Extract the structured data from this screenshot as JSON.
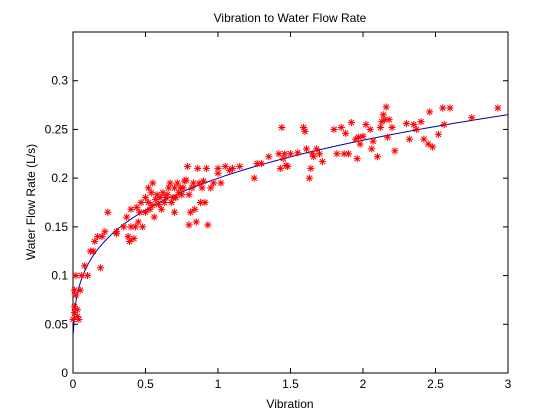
{
  "chart_data": {
    "type": "scatter",
    "title": "Vibration to Water Flow Rate",
    "xlabel": "Vibration",
    "ylabel": "Water Flow Rate (L/s)",
    "xlim": [
      0,
      3
    ],
    "ylim": [
      0,
      0.35
    ],
    "xticks": [
      "0",
      "0.5",
      "1",
      "1.5",
      "2",
      "2.5",
      "3"
    ],
    "yticks": [
      "0",
      "0.05",
      "0.1",
      "0.15",
      "0.2",
      "0.25",
      "0.3"
    ],
    "grid": false,
    "marker_color": "#ff0000",
    "fit_color": "#0000aa",
    "points": [
      [
        0.0,
        0.055
      ],
      [
        0.01,
        0.062
      ],
      [
        0.01,
        0.068
      ],
      [
        0.01,
        0.085
      ],
      [
        0.02,
        0.08
      ],
      [
        0.02,
        0.1
      ],
      [
        0.03,
        0.058
      ],
      [
        0.03,
        0.065
      ],
      [
        0.04,
        0.055
      ],
      [
        0.05,
        0.085
      ],
      [
        0.06,
        0.1
      ],
      [
        0.08,
        0.11
      ],
      [
        0.1,
        0.1
      ],
      [
        0.12,
        0.125
      ],
      [
        0.14,
        0.125
      ],
      [
        0.15,
        0.135
      ],
      [
        0.17,
        0.14
      ],
      [
        0.19,
        0.108
      ],
      [
        0.2,
        0.14
      ],
      [
        0.22,
        0.145
      ],
      [
        0.24,
        0.165
      ],
      [
        0.3,
        0.145
      ],
      [
        0.3,
        0.143
      ],
      [
        0.35,
        0.15
      ],
      [
        0.37,
        0.16
      ],
      [
        0.38,
        0.14
      ],
      [
        0.39,
        0.135
      ],
      [
        0.4,
        0.15
      ],
      [
        0.4,
        0.168
      ],
      [
        0.42,
        0.138
      ],
      [
        0.43,
        0.15
      ],
      [
        0.44,
        0.17
      ],
      [
        0.45,
        0.155
      ],
      [
        0.46,
        0.165
      ],
      [
        0.47,
        0.175
      ],
      [
        0.48,
        0.15
      ],
      [
        0.5,
        0.18
      ],
      [
        0.5,
        0.165
      ],
      [
        0.52,
        0.19
      ],
      [
        0.52,
        0.175
      ],
      [
        0.53,
        0.168
      ],
      [
        0.54,
        0.185
      ],
      [
        0.55,
        0.195
      ],
      [
        0.55,
        0.172
      ],
      [
        0.56,
        0.16
      ],
      [
        0.57,
        0.178
      ],
      [
        0.58,
        0.183
      ],
      [
        0.59,
        0.173
      ],
      [
        0.6,
        0.18
      ],
      [
        0.61,
        0.168
      ],
      [
        0.62,
        0.185
      ],
      [
        0.63,
        0.175
      ],
      [
        0.64,
        0.18
      ],
      [
        0.65,
        0.183
      ],
      [
        0.66,
        0.19
      ],
      [
        0.67,
        0.195
      ],
      [
        0.68,
        0.175
      ],
      [
        0.69,
        0.18
      ],
      [
        0.7,
        0.19
      ],
      [
        0.7,
        0.165
      ],
      [
        0.71,
        0.18
      ],
      [
        0.72,
        0.195
      ],
      [
        0.73,
        0.185
      ],
      [
        0.74,
        0.19
      ],
      [
        0.75,
        0.183
      ],
      [
        0.76,
        0.19
      ],
      [
        0.77,
        0.197
      ],
      [
        0.78,
        0.198
      ],
      [
        0.79,
        0.212
      ],
      [
        0.8,
        0.183
      ],
      [
        0.8,
        0.152
      ],
      [
        0.81,
        0.165
      ],
      [
        0.82,
        0.19
      ],
      [
        0.83,
        0.195
      ],
      [
        0.84,
        0.168
      ],
      [
        0.85,
        0.155
      ],
      [
        0.86,
        0.21
      ],
      [
        0.87,
        0.195
      ],
      [
        0.88,
        0.175
      ],
      [
        0.89,
        0.19
      ],
      [
        0.9,
        0.197
      ],
      [
        0.91,
        0.175
      ],
      [
        0.92,
        0.21
      ],
      [
        0.93,
        0.152
      ],
      [
        0.95,
        0.19
      ],
      [
        0.97,
        0.195
      ],
      [
        1.0,
        0.21
      ],
      [
        1.0,
        0.205
      ],
      [
        1.02,
        0.195
      ],
      [
        1.05,
        0.212
      ],
      [
        1.08,
        0.208
      ],
      [
        1.1,
        0.21
      ],
      [
        1.15,
        0.212
      ],
      [
        1.25,
        0.2
      ],
      [
        1.27,
        0.215
      ],
      [
        1.3,
        0.215
      ],
      [
        1.35,
        0.222
      ],
      [
        1.42,
        0.225
      ],
      [
        1.43,
        0.21
      ],
      [
        1.44,
        0.252
      ],
      [
        1.45,
        0.22
      ],
      [
        1.46,
        0.225
      ],
      [
        1.47,
        0.213
      ],
      [
        1.48,
        0.212
      ],
      [
        1.5,
        0.225
      ],
      [
        1.55,
        0.226
      ],
      [
        1.59,
        0.252
      ],
      [
        1.6,
        0.248
      ],
      [
        1.61,
        0.23
      ],
      [
        1.63,
        0.2
      ],
      [
        1.64,
        0.21
      ],
      [
        1.65,
        0.225
      ],
      [
        1.66,
        0.222
      ],
      [
        1.68,
        0.23
      ],
      [
        1.7,
        0.225
      ],
      [
        1.72,
        0.217
      ],
      [
        1.8,
        0.25
      ],
      [
        1.82,
        0.225
      ],
      [
        1.85,
        0.252
      ],
      [
        1.87,
        0.225
      ],
      [
        1.88,
        0.246
      ],
      [
        1.9,
        0.225
      ],
      [
        1.92,
        0.257
      ],
      [
        1.95,
        0.24
      ],
      [
        1.96,
        0.22
      ],
      [
        1.97,
        0.242
      ],
      [
        1.98,
        0.235
      ],
      [
        2.0,
        0.243
      ],
      [
        2.02,
        0.255
      ],
      [
        2.05,
        0.25
      ],
      [
        2.06,
        0.23
      ],
      [
        2.07,
        0.238
      ],
      [
        2.1,
        0.222
      ],
      [
        2.12,
        0.252
      ],
      [
        2.13,
        0.258
      ],
      [
        2.14,
        0.265
      ],
      [
        2.15,
        0.26
      ],
      [
        2.16,
        0.273
      ],
      [
        2.17,
        0.242
      ],
      [
        2.18,
        0.26
      ],
      [
        2.2,
        0.252
      ],
      [
        2.22,
        0.228
      ],
      [
        2.3,
        0.256
      ],
      [
        2.32,
        0.24
      ],
      [
        2.35,
        0.255
      ],
      [
        2.37,
        0.25
      ],
      [
        2.4,
        0.258
      ],
      [
        2.42,
        0.24
      ],
      [
        2.45,
        0.235
      ],
      [
        2.46,
        0.268
      ],
      [
        2.48,
        0.232
      ],
      [
        2.52,
        0.245
      ],
      [
        2.55,
        0.272
      ],
      [
        2.56,
        0.255
      ],
      [
        2.6,
        0.272
      ],
      [
        2.75,
        0.262
      ],
      [
        2.93,
        0.272
      ]
    ]
  }
}
